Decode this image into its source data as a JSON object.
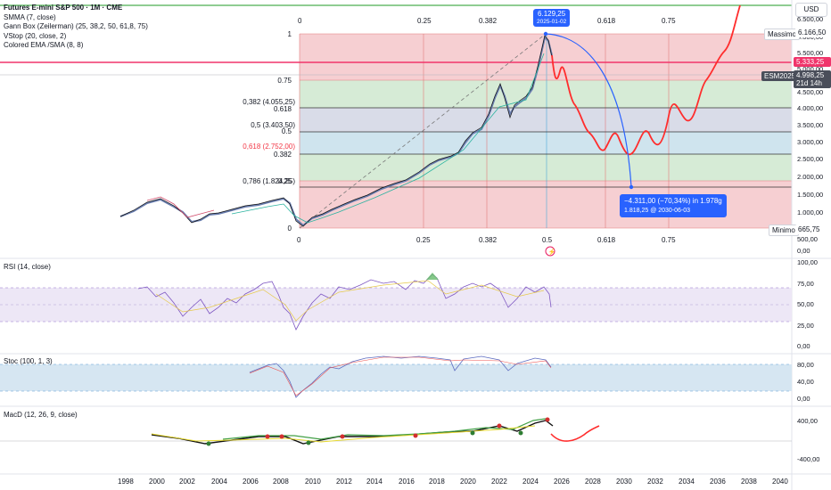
{
  "legend": {
    "title": "Futures E-mini S&P 500 · 1M · CME",
    "items": [
      "SMMA (7, close)",
      "Gann Box (Zeilerman) (25, 38,2, 50, 61,8, 75)",
      "VStop (20, close, 2)",
      "Colored EMA /SMA (8, 8)"
    ]
  },
  "currency_button": "USD",
  "fib_top_labels": [
    "0",
    "0.25",
    "0.382",
    "0.618",
    "0.75"
  ],
  "fib_bottom_labels": [
    "0",
    "0.25",
    "0.382",
    "0.5",
    "0.618",
    "0.75"
  ],
  "fib_left_labels": {
    "l1": "1",
    "l075": "0.75",
    "l0382": "0,382 (4.055,25)",
    "l0618": "0.618",
    "l05a": "0,5 (3.403,50)",
    "l05b": "0.5",
    "l0618b": "0,618 (2.752,00)",
    "l0382b": "0.382",
    "l0786": "0,786 (1.824,25)",
    "l025": "0.25",
    "l0": "0"
  },
  "price_axis": [
    "6.500,00",
    "6.000,00",
    "5.500,00",
    "5.000,00",
    "4.500,00",
    "4.000,00",
    "3.500,00",
    "3.000,00",
    "2.500,00",
    "2.000,00",
    "1.500,00",
    "1.000,00",
    "500,00",
    "0,00"
  ],
  "price_tags": {
    "massimo_label": "Massimo",
    "massimo_value": "6.166,50",
    "red_value": "5.333,25",
    "contract_label": "ESM2025",
    "contract_value": "4.998,25",
    "contract_time": "21d 14h",
    "minimo_label": "Minimo",
    "minimo_value": "665,75"
  },
  "peak_tag": {
    "value": "6.129,25",
    "date": "2025-01-02"
  },
  "projection_tag": {
    "line1": "−4.311,00 (−70,34%) in 1.978g",
    "line2": "1.818,25 @ 2030-06-03"
  },
  "rsi": {
    "label": "RSI (14, close)",
    "axis": [
      "100,00",
      "75,00",
      "50,00",
      "25,00",
      "0,00"
    ]
  },
  "stoch": {
    "label": "Stoc (100, 1, 3)",
    "axis": [
      "80,00",
      "40,00",
      "0,00"
    ]
  },
  "macd": {
    "label": "MacD (12, 26, 9, close)",
    "axis": [
      "400,00",
      "-400,00"
    ]
  },
  "time_axis": [
    "1998",
    "2000",
    "2002",
    "2004",
    "2006",
    "2008",
    "2010",
    "2012",
    "2014",
    "2016",
    "2018",
    "2020",
    "2022",
    "2024",
    "2026",
    "2028",
    "2030",
    "2032",
    "2034",
    "2036",
    "2038",
    "2040"
  ],
  "colors": {
    "bullish": "#089981",
    "bearish": "#f23645",
    "projection": "#ff2d2d",
    "arc": "#2962ff",
    "rsi": "#7e57c2"
  }
}
